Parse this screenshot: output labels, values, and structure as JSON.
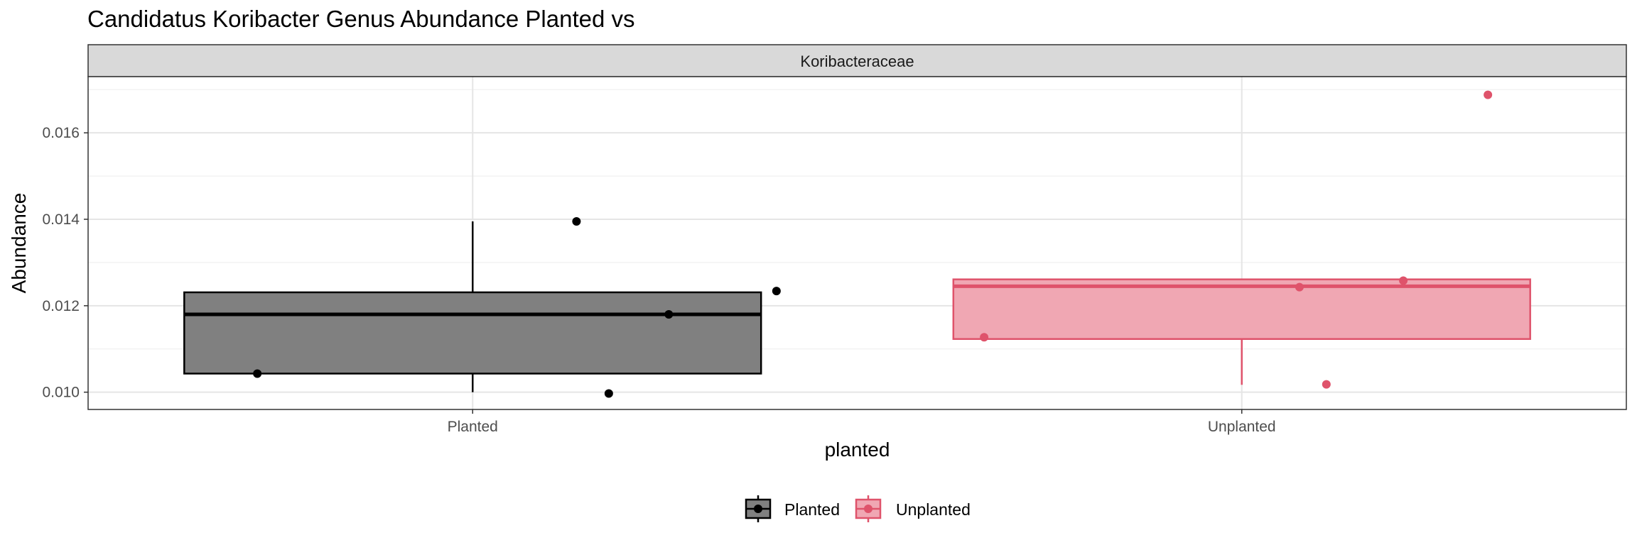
{
  "chart_data": {
    "type": "box",
    "title": "Candidatus Koribacter Genus Abundance Planted vs",
    "facet_label": "Koribacteraceae",
    "xlabel": "planted",
    "ylabel": "Abundance",
    "categories": [
      "Planted",
      "Unplanted"
    ],
    "ylim": [
      0.0096,
      0.0173
    ],
    "yticks": [
      0.01,
      0.012,
      0.014,
      0.016
    ],
    "ytick_labels": [
      "0.010",
      "0.012",
      "0.014",
      "0.016"
    ],
    "grid": true,
    "legend_position": "bottom",
    "series": [
      {
        "name": "Planted",
        "color": "#000000",
        "fill": "#808080",
        "box": {
          "lower_whisker": 0.01,
          "q1": 0.01043,
          "median": 0.0118,
          "q3": 0.01231,
          "upper_whisker": 0.01395
        },
        "points": [
          {
            "x_offset": -0.28,
            "y": 0.01043
          },
          {
            "x_offset": 0.135,
            "y": 0.01395
          },
          {
            "x_offset": 0.255,
            "y": 0.0118
          },
          {
            "x_offset": 0.395,
            "y": 0.01234
          },
          {
            "x_offset": 0.177,
            "y": 0.00997
          }
        ]
      },
      {
        "name": "Unplanted",
        "color": "#df536b",
        "fill": "#f0a7b3",
        "box": {
          "lower_whisker": 0.01017,
          "q1": 0.01123,
          "median": 0.01245,
          "q3": 0.01261,
          "upper_whisker": 0.01261
        },
        "points": [
          {
            "x_offset": -0.335,
            "y": 0.01127
          },
          {
            "x_offset": 0.075,
            "y": 0.01243
          },
          {
            "x_offset": 0.21,
            "y": 0.01258
          },
          {
            "x_offset": 0.11,
            "y": 0.01018
          },
          {
            "x_offset": 0.32,
            "y": 0.01688
          }
        ]
      }
    ]
  }
}
